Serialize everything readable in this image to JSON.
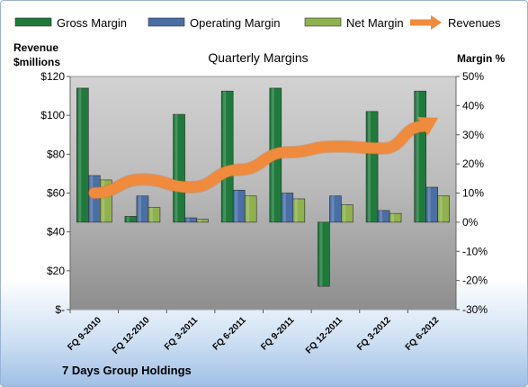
{
  "chart_data": {
    "type": "bar",
    "title": "Quarterly Margins",
    "left_axis_title": [
      "Revenue",
      "$millions"
    ],
    "right_axis_title": "Margin %",
    "categories": [
      "FQ 9-2010",
      "FQ 12-2010",
      "FQ 3-2011",
      "FQ 6-2011",
      "FQ 9-2011",
      "FQ 12-2011",
      "FQ 3-2012",
      "FQ 6-2012"
    ],
    "y_left_ticks": [
      "$-",
      "$20",
      "$40",
      "$60",
      "$80",
      "$100",
      "$120"
    ],
    "y_left_range": [
      0,
      120
    ],
    "y_right_ticks": [
      "-30%",
      "-20%",
      "-10%",
      "0%",
      "10%",
      "20%",
      "30%",
      "40%",
      "50%"
    ],
    "y_right_range": [
      -30,
      50
    ],
    "series": [
      {
        "name": "Gross Margin",
        "axis": "right",
        "kind": "bar",
        "color": "#1f7a3c",
        "values": [
          46,
          2,
          37,
          45,
          46,
          -22,
          38,
          45
        ]
      },
      {
        "name": "Operating Margin",
        "axis": "right",
        "kind": "bar",
        "color": "#4a6fa5",
        "values": [
          16,
          9,
          1.5,
          11,
          10,
          9,
          4,
          12
        ]
      },
      {
        "name": "Net Margin",
        "axis": "right",
        "kind": "bar",
        "color": "#8fb14e",
        "values": [
          14.5,
          5,
          1,
          9,
          8,
          6,
          3,
          9
        ]
      },
      {
        "name": "Revenues",
        "axis": "left",
        "kind": "arrow-line",
        "color": "#f08a3c",
        "values": [
          60,
          67,
          63,
          72,
          81,
          84,
          83,
          97
        ]
      }
    ],
    "legend_position": "top",
    "grid": false
  },
  "footer": {
    "company": "7 Days Group Holdings"
  }
}
